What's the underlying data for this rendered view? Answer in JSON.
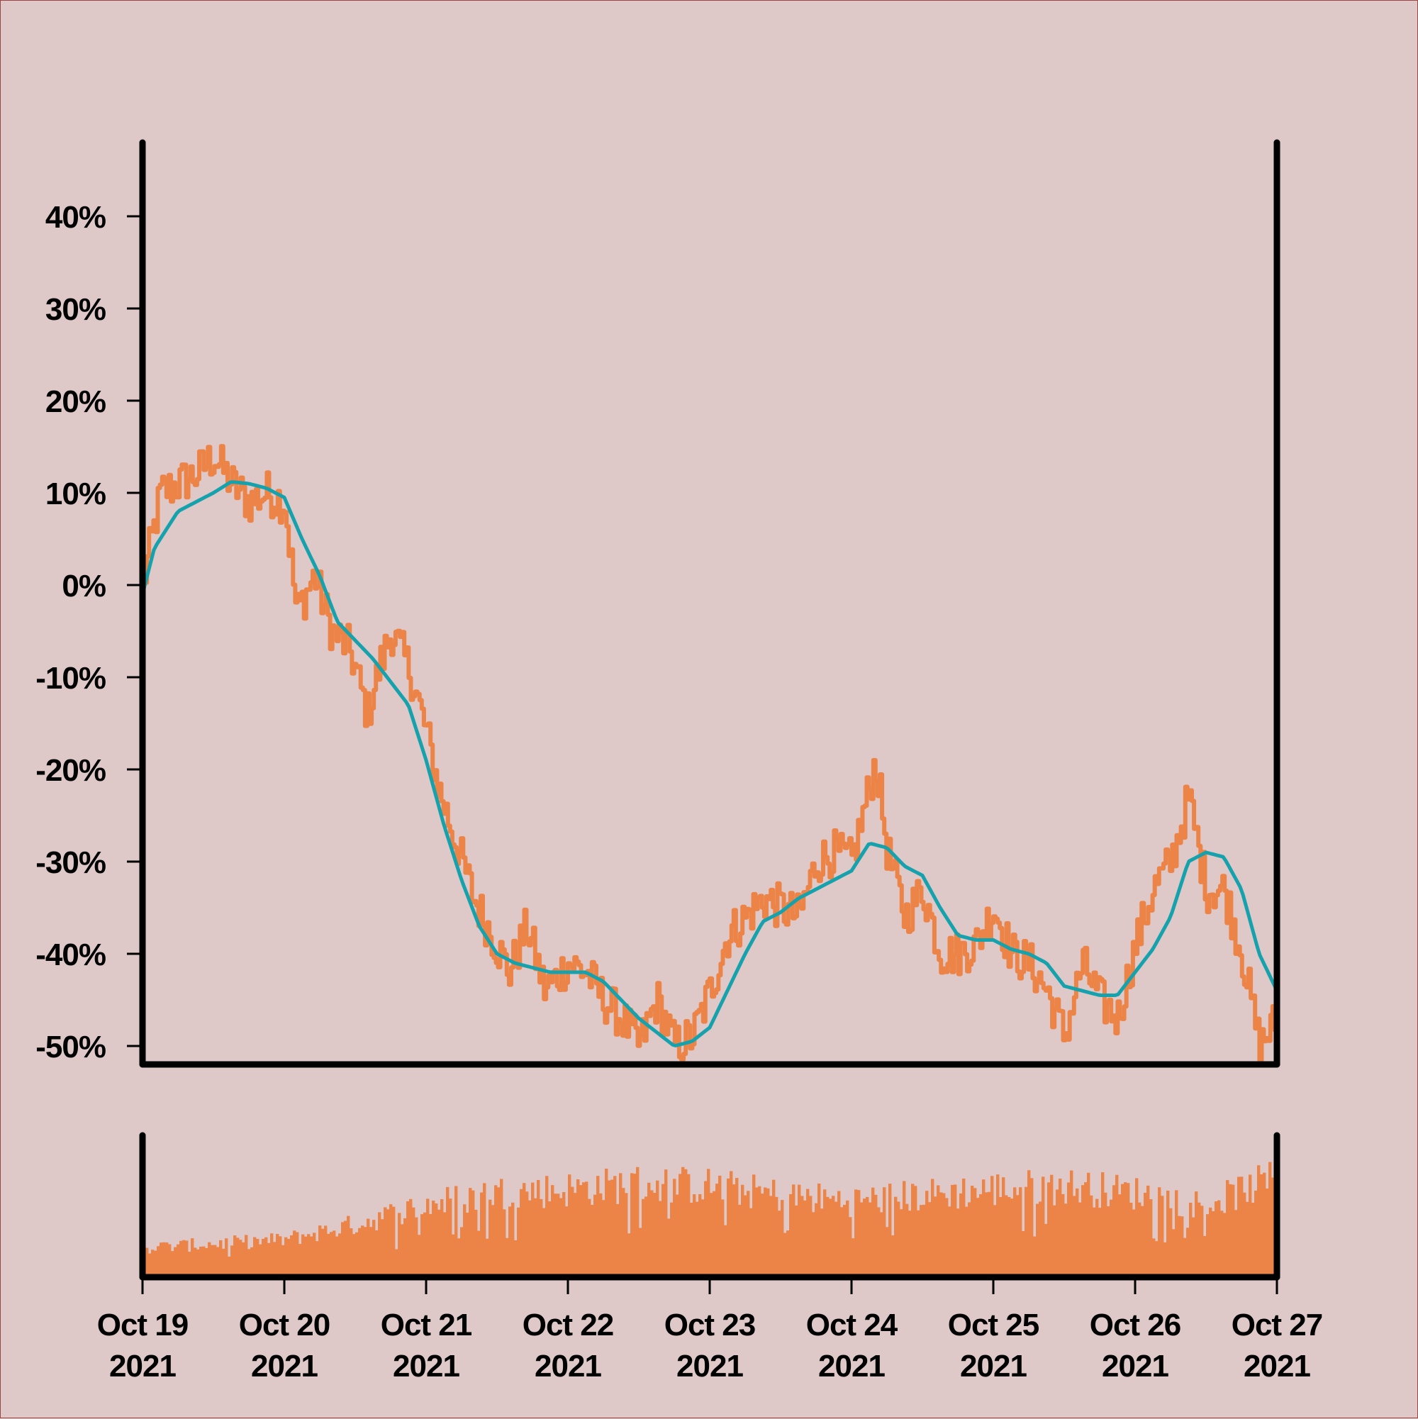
{
  "colors": {
    "background": "#dfc8c8",
    "price_line": "#ed8447",
    "average_line": "#16a2ad",
    "volume_bars": "#ed8447",
    "axes": "#000000"
  },
  "chart_data": [
    {
      "type": "line",
      "title": "",
      "xlabel": "",
      "ylabel": "",
      "x_axis_type": "date",
      "xlim": [
        "2021-10-19",
        "2021-10-27"
      ],
      "ylim": [
        -52,
        48
      ],
      "y_unit": "%",
      "y_ticks": [
        40,
        30,
        20,
        10,
        0,
        -10,
        -20,
        -30,
        -40,
        -50
      ],
      "y_tick_labels": [
        "40%",
        "30%",
        "20%",
        "10%",
        "0%",
        "-10%",
        "-20%",
        "-30%",
        "-40%",
        "-50%"
      ],
      "grid": false,
      "legend": "none",
      "series": [
        {
          "color": "#ed8447",
          "points": [
            [
              "2021-10-19 00:00",
              0
            ],
            [
              "2021-10-19 03:00",
              10
            ],
            [
              "2021-10-19 06:00",
              11
            ],
            [
              "2021-10-19 09:00",
              12
            ],
            [
              "2021-10-19 12:00",
              14
            ],
            [
              "2021-10-19 15:00",
              11
            ],
            [
              "2021-10-19 18:00",
              9
            ],
            [
              "2021-10-19 21:00",
              10
            ],
            [
              "2021-10-20 00:00",
              9
            ],
            [
              "2021-10-20 02:00",
              -3
            ],
            [
              "2021-10-20 05:00",
              1
            ],
            [
              "2021-10-20 08:00",
              -5
            ],
            [
              "2021-10-20 11:00",
              -7
            ],
            [
              "2021-10-20 14:00",
              -14
            ],
            [
              "2021-10-20 16:00",
              -9
            ],
            [
              "2021-10-20 18:00",
              -5
            ],
            [
              "2021-10-20 21:00",
              -9
            ],
            [
              "2021-10-21 00:00",
              -16
            ],
            [
              "2021-10-21 02:00",
              -22
            ],
            [
              "2021-10-21 05:00",
              -28
            ],
            [
              "2021-10-21 08:00",
              -34
            ],
            [
              "2021-10-21 11:00",
              -38
            ],
            [
              "2021-10-21 14:00",
              -42
            ],
            [
              "2021-10-21 17:00",
              -37
            ],
            [
              "2021-10-21 20:00",
              -44
            ],
            [
              "2021-10-22 00:00",
              -41
            ],
            [
              "2021-10-22 03:00",
              -42
            ],
            [
              "2021-10-22 06:00",
              -45
            ],
            [
              "2021-10-22 09:00",
              -47
            ],
            [
              "2021-10-22 12:00",
              -50
            ],
            [
              "2021-10-22 15:00",
              -45
            ],
            [
              "2021-10-22 18:00",
              -50
            ],
            [
              "2021-10-22 21:00",
              -49
            ],
            [
              "2021-10-23 00:00",
              -44
            ],
            [
              "2021-10-23 03:00",
              -38
            ],
            [
              "2021-10-23 06:00",
              -36
            ],
            [
              "2021-10-23 09:00",
              -34
            ],
            [
              "2021-10-23 12:00",
              -35
            ],
            [
              "2021-10-23 15:00",
              -36
            ],
            [
              "2021-10-23 18:00",
              -30
            ],
            [
              "2021-10-23 21:00",
              -29
            ],
            [
              "2021-10-24 00:00",
              -30
            ],
            [
              "2021-10-24 04:00",
              -19
            ],
            [
              "2021-10-24 06:00",
              -29
            ],
            [
              "2021-10-24 09:00",
              -36
            ],
            [
              "2021-10-24 12:00",
              -33
            ],
            [
              "2021-10-24 15:00",
              -40
            ],
            [
              "2021-10-24 18:00",
              -40
            ],
            [
              "2021-10-24 21:00",
              -39
            ],
            [
              "2021-10-25 00:00",
              -35
            ],
            [
              "2021-10-25 03:00",
              -40
            ],
            [
              "2021-10-25 06:00",
              -41
            ],
            [
              "2021-10-25 09:00",
              -44
            ],
            [
              "2021-10-25 12:00",
              -49
            ],
            [
              "2021-10-25 15:00",
              -41
            ],
            [
              "2021-10-25 18:00",
              -45
            ],
            [
              "2021-10-25 21:00",
              -47
            ],
            [
              "2021-10-26 00:00",
              -39
            ],
            [
              "2021-10-26 03:00",
              -33
            ],
            [
              "2021-10-26 06:00",
              -30
            ],
            [
              "2021-10-26 09:00",
              -23
            ],
            [
              "2021-10-26 12:00",
              -33
            ],
            [
              "2021-10-26 15:00",
              -33
            ],
            [
              "2021-10-26 18:00",
              -40
            ],
            [
              "2021-10-26 21:00",
              -50
            ],
            [
              "2021-10-27 00:00",
              -47
            ]
          ]
        },
        {
          "color": "#16a2ad",
          "points": [
            [
              "2021-10-19 00:00",
              -1
            ],
            [
              "2021-10-19 02:00",
              4
            ],
            [
              "2021-10-19 04:00",
              6
            ],
            [
              "2021-10-19 06:00",
              8
            ],
            [
              "2021-10-19 09:00",
              9
            ],
            [
              "2021-10-19 12:00",
              10
            ],
            [
              "2021-10-19 15:00",
              11.2
            ],
            [
              "2021-10-19 18:00",
              11
            ],
            [
              "2021-10-19 21:00",
              10.5
            ],
            [
              "2021-10-20 00:00",
              9.5
            ],
            [
              "2021-10-20 03:00",
              5
            ],
            [
              "2021-10-20 06:00",
              1
            ],
            [
              "2021-10-20 09:00",
              -4
            ],
            [
              "2021-10-20 12:00",
              -6
            ],
            [
              "2021-10-20 15:00",
              -8
            ],
            [
              "2021-10-20 18:00",
              -10.5
            ],
            [
              "2021-10-20 21:00",
              -13
            ],
            [
              "2021-10-21 00:00",
              -19
            ],
            [
              "2021-10-21 03:00",
              -26
            ],
            [
              "2021-10-21 06:00",
              -32
            ],
            [
              "2021-10-21 09:00",
              -37
            ],
            [
              "2021-10-21 12:00",
              -40
            ],
            [
              "2021-10-21 15:00",
              -41
            ],
            [
              "2021-10-21 18:00",
              -41.5
            ],
            [
              "2021-10-21 21:00",
              -42
            ],
            [
              "2021-10-22 00:00",
              -42
            ],
            [
              "2021-10-22 03:00",
              -42
            ],
            [
              "2021-10-22 06:00",
              -43
            ],
            [
              "2021-10-22 09:00",
              -45
            ],
            [
              "2021-10-22 12:00",
              -47
            ],
            [
              "2021-10-22 15:00",
              -48.5
            ],
            [
              "2021-10-22 18:00",
              -50
            ],
            [
              "2021-10-22 21:00",
              -49.5
            ],
            [
              "2021-10-23 00:00",
              -48
            ],
            [
              "2021-10-23 03:00",
              -44
            ],
            [
              "2021-10-23 06:00",
              -40
            ],
            [
              "2021-10-23 09:00",
              -36.5
            ],
            [
              "2021-10-23 12:00",
              -35.5
            ],
            [
              "2021-10-23 15:00",
              -34
            ],
            [
              "2021-10-23 18:00",
              -33
            ],
            [
              "2021-10-23 21:00",
              -32
            ],
            [
              "2021-10-24 00:00",
              -31
            ],
            [
              "2021-10-24 03:00",
              -28
            ],
            [
              "2021-10-24 06:00",
              -28.5
            ],
            [
              "2021-10-24 09:00",
              -30.5
            ],
            [
              "2021-10-24 12:00",
              -31.5
            ],
            [
              "2021-10-24 15:00",
              -35
            ],
            [
              "2021-10-24 18:00",
              -38
            ],
            [
              "2021-10-24 21:00",
              -38.5
            ],
            [
              "2021-10-25 00:00",
              -38.5
            ],
            [
              "2021-10-25 03:00",
              -39.5
            ],
            [
              "2021-10-25 06:00",
              -40
            ],
            [
              "2021-10-25 09:00",
              -41
            ],
            [
              "2021-10-25 12:00",
              -43.5
            ],
            [
              "2021-10-25 15:00",
              -44
            ],
            [
              "2021-10-25 18:00",
              -44.5
            ],
            [
              "2021-10-25 21:00",
              -44.5
            ],
            [
              "2021-10-26 00:00",
              -42
            ],
            [
              "2021-10-26 03:00",
              -39.5
            ],
            [
              "2021-10-26 06:00",
              -36
            ],
            [
              "2021-10-26 09:00",
              -30
            ],
            [
              "2021-10-26 12:00",
              -29
            ],
            [
              "2021-10-26 15:00",
              -29.5
            ],
            [
              "2021-10-26 18:00",
              -33
            ],
            [
              "2021-10-26 21:00",
              -40
            ],
            [
              "2021-10-27 00:00",
              -44
            ]
          ]
        }
      ]
    },
    {
      "type": "bar",
      "title": "",
      "xlabel": "",
      "ylabel": "",
      "x_axis_type": "date",
      "xlim": [
        "2021-10-19",
        "2021-10-27"
      ],
      "y_ticks_shown": false,
      "x_tick_labels": [
        [
          "Oct 19",
          "2021"
        ],
        [
          "Oct 20",
          "2021"
        ],
        [
          "Oct 21",
          "2021"
        ],
        [
          "Oct 22",
          "2021"
        ],
        [
          "Oct 23",
          "2021"
        ],
        [
          "Oct 24",
          "2021"
        ],
        [
          "Oct 25",
          "2021"
        ],
        [
          "Oct 26",
          "2021"
        ],
        [
          "Oct 27",
          "2021"
        ]
      ],
      "series": [
        {
          "color": "#ed8447",
          "relative_level_envelope": [
            [
              "2021-10-19 00:00",
              0.25
            ],
            [
              "2021-10-20 00:00",
              0.32
            ],
            [
              "2021-10-20 12:00",
              0.45
            ],
            [
              "2021-10-21 00:00",
              0.62
            ],
            [
              "2021-10-21 12:00",
              0.72
            ],
            [
              "2021-10-22 00:00",
              0.75
            ],
            [
              "2021-10-22 12:00",
              0.8
            ],
            [
              "2021-10-23 00:00",
              0.78
            ],
            [
              "2021-10-23 12:00",
              0.7
            ],
            [
              "2021-10-24 00:00",
              0.65
            ],
            [
              "2021-10-24 12:00",
              0.7
            ],
            [
              "2021-10-25 00:00",
              0.75
            ],
            [
              "2021-10-25 12:00",
              0.78
            ],
            [
              "2021-10-26 00:00",
              0.72
            ],
            [
              "2021-10-26 12:00",
              0.62
            ],
            [
              "2021-10-27 00:00",
              0.85
            ]
          ]
        }
      ]
    }
  ]
}
